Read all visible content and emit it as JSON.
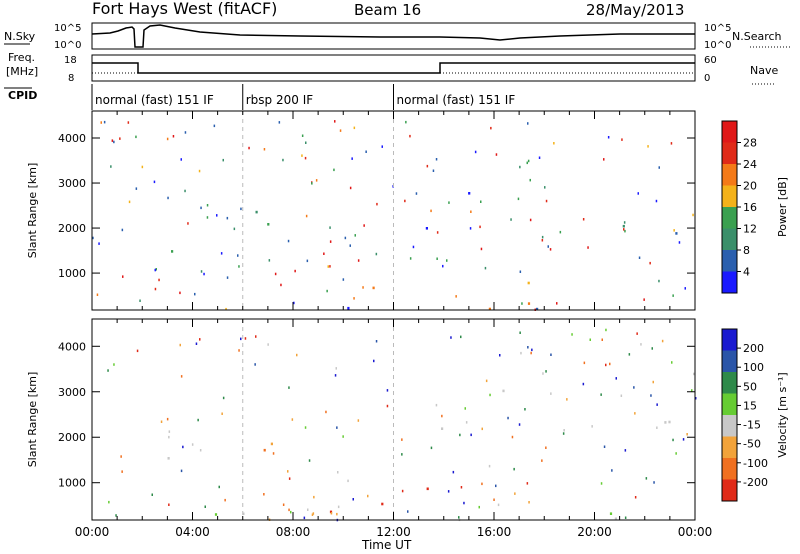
{
  "header": {
    "title": "Fort Hays West (fitACF)",
    "beam": "Beam 16",
    "date": "28/May/2013"
  },
  "panels": {
    "nsky_label": "N.Sky",
    "nsearch_label": "N.Search",
    "noise_ticks": [
      "10^5",
      "10^0"
    ],
    "freq_label_1": "Freq.",
    "freq_label_2": "[MHz]",
    "freq_ticks": [
      "18",
      "8"
    ],
    "nave_label": "Nave",
    "nave_ticks": [
      "60",
      "0"
    ],
    "cpid_label": "CPID",
    "cpid_segments": [
      {
        "label": "normal (fast) 151 IF",
        "start": 0,
        "end": 6
      },
      {
        "label": "rbsp 200 IF",
        "start": 6,
        "end": 12
      },
      {
        "label": "normal (fast) 151 IF",
        "start": 12,
        "end": 24
      }
    ]
  },
  "chart_data": [
    {
      "type": "heatmap",
      "name": "power",
      "ylabel": "Slant Range [km]",
      "yticks": [
        "1000",
        "2000",
        "3000",
        "4000"
      ],
      "ylim": [
        180,
        4600
      ],
      "xlim": [
        0,
        24
      ],
      "colorbar_label": "Power [dB]",
      "colorbar_ticks": [
        "4",
        "8",
        "12",
        "16",
        "20",
        "24",
        "28"
      ],
      "colors": [
        "#1a1aff",
        "#2a5fae",
        "#3a8f6a",
        "#3aa050",
        "#f4b21a",
        "#f47a18",
        "#e02a18",
        "#e01818"
      ]
    },
    {
      "type": "heatmap",
      "name": "velocity",
      "ylabel": "Slant Range [km]",
      "yticks": [
        "1000",
        "2000",
        "3000",
        "4000"
      ],
      "ylim": [
        180,
        4600
      ],
      "xlim": [
        0,
        24
      ],
      "colorbar_label": "Velocity [m s⁻¹]",
      "colorbar_ticks": [
        "200",
        "100",
        "50",
        "15",
        "-15",
        "-50",
        "-100",
        "-200"
      ],
      "colors": [
        "#1a1ad0",
        "#2a55a8",
        "#2e8a4a",
        "#66cc33",
        "#c8c8c8",
        "#f2a33a",
        "#f07020",
        "#e02a18"
      ]
    }
  ],
  "xaxis": {
    "label": "Time UT",
    "ticks": [
      "00:00",
      "04:00",
      "08:00",
      "12:00",
      "16:00",
      "20:00",
      "00:00"
    ]
  }
}
